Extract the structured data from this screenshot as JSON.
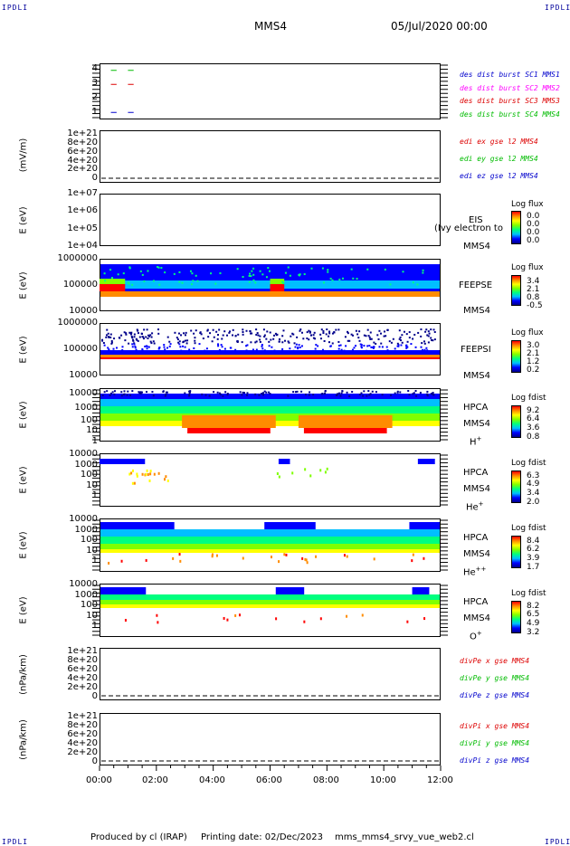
{
  "header": {
    "corner_left": "IPDLI",
    "corner_right": "IPDLI",
    "spacecraft": "MMS4",
    "date_time": "05/Jul/2020 00:00"
  },
  "footer": {
    "corner_left": "IPDLI",
    "corner_right": "IPDLI",
    "produced_by": "Produced by cl (IRAP)",
    "printing_date": "Printing date: 02/Dec/2023",
    "script_name": "mms_mms4_srvy_vue_web2.cl"
  },
  "colors": {
    "blue": "#0000cc",
    "magenta": "#ff00ff",
    "red": "#dd0000",
    "green": "#00bb00",
    "spectrogram_scale": [
      "#00008b",
      "#0000ff",
      "#00bfff",
      "#00ff7f",
      "#7fff00",
      "#ffff00",
      "#ff8c00",
      "#ff0000"
    ]
  },
  "chart_data": [
    {
      "id": "burst",
      "type": "scatter",
      "ylim": [
        0.5,
        4.5
      ],
      "yticks": [
        "4",
        "3",
        "2",
        "1"
      ],
      "legend": [
        {
          "label": "des dist burst SC1 MMS1",
          "color": "#0000cc"
        },
        {
          "label": "des dist burst SC2 MMS2",
          "color": "#ff00ff"
        },
        {
          "label": "des dist burst SC3 MMS3",
          "color": "#dd0000"
        },
        {
          "label": "des dist burst SC4 MMS4",
          "color": "#00bb00"
        }
      ],
      "series": [
        {
          "level": 4,
          "color": "#00bb00",
          "segments": [
            [
              0.4,
              0.6
            ],
            [
              1.0,
              1.2
            ]
          ]
        },
        {
          "level": 3,
          "color": "#dd0000",
          "segments": [
            [
              0.4,
              0.6
            ],
            [
              1.0,
              1.2
            ]
          ]
        },
        {
          "level": 1,
          "color": "#0000cc",
          "segments": [
            [
              0.4,
              0.6
            ],
            [
              1.0,
              1.2
            ]
          ]
        }
      ]
    },
    {
      "id": "edi",
      "type": "line",
      "ylabel": "(mV/m)",
      "yticks": [
        "1e+21",
        "8e+20",
        "6e+20",
        "4e+20",
        "2e+20",
        "0"
      ],
      "legend": [
        {
          "label": "edi ex gse l2 MMS4",
          "color": "#dd0000"
        },
        {
          "label": "edi ey gse l2 MMS4",
          "color": "#00bb00"
        },
        {
          "label": "edi ez gse l2 MMS4",
          "color": "#0000cc"
        }
      ]
    },
    {
      "id": "eis",
      "type": "heatmap",
      "ylabel": "E (eV)",
      "yticks": [
        "1e+07",
        "1e+06",
        "1e+05",
        "1e+04"
      ],
      "side_labels": [
        "EIS",
        "MMS4"
      ],
      "overlay_text": "(Ivy electron to",
      "colorbar": {
        "title": "Log flux",
        "values": [
          "0.0",
          "0.0",
          "0.0",
          "0.0"
        ]
      }
    },
    {
      "id": "feepse",
      "type": "heatmap",
      "ylabel": "E (eV)",
      "yticks": [
        "1000000",
        "100000",
        "10000"
      ],
      "side_labels": [
        "FEEPSE",
        "MMS4"
      ],
      "colorbar": {
        "title": "Log flux",
        "values": [
          "3.4",
          "2.1",
          "0.8",
          "-0.5"
        ]
      }
    },
    {
      "id": "feepsi",
      "type": "heatmap",
      "ylabel": "E (eV)",
      "yticks": [
        "1000000",
        "100000",
        "10000"
      ],
      "side_labels": [
        "FEEPSI",
        "MMS4"
      ],
      "colorbar": {
        "title": "Log flux",
        "values": [
          "3.0",
          "2.1",
          "1.2",
          "0.2"
        ]
      }
    },
    {
      "id": "hpca_h",
      "type": "heatmap",
      "ylabel": "E (eV)",
      "yticks": [
        "10000",
        "1000",
        "100",
        "10",
        "1"
      ],
      "side_labels": [
        "HPCA",
        "MMS4",
        "H+"
      ],
      "colorbar": {
        "title": "Log fdist",
        "values": [
          "9.2",
          "6.4",
          "3.6",
          "0.8"
        ]
      }
    },
    {
      "id": "hpca_he",
      "type": "heatmap",
      "ylabel": "E (eV)",
      "yticks": [
        "10000",
        "1000",
        "100",
        "10",
        "1"
      ],
      "side_labels": [
        "HPCA",
        "MMS4",
        "He+"
      ],
      "colorbar": {
        "title": "Log fdist",
        "values": [
          "6.3",
          "4.9",
          "3.4",
          "2.0"
        ]
      }
    },
    {
      "id": "hpca_hepp",
      "type": "heatmap",
      "ylabel": "E (eV)",
      "yticks": [
        "10000",
        "1000",
        "100",
        "10",
        "1"
      ],
      "side_labels": [
        "HPCA",
        "MMS4",
        "He++"
      ],
      "colorbar": {
        "title": "Log fdist",
        "values": [
          "8.4",
          "6.2",
          "3.9",
          "1.7"
        ]
      }
    },
    {
      "id": "hpca_o",
      "type": "heatmap",
      "ylabel": "E (eV)",
      "yticks": [
        "10000",
        "1000",
        "100",
        "10",
        "1"
      ],
      "side_labels": [
        "HPCA",
        "MMS4",
        "O+"
      ],
      "colorbar": {
        "title": "Log fdist",
        "values": [
          "8.2",
          "6.5",
          "4.9",
          "3.2"
        ]
      }
    },
    {
      "id": "divpe",
      "type": "line",
      "ylabel": "(nPa/km)",
      "yticks": [
        "1e+21",
        "8e+20",
        "6e+20",
        "4e+20",
        "2e+20",
        "0"
      ],
      "legend": [
        {
          "label": "divPe x gse MMS4",
          "color": "#dd0000"
        },
        {
          "label": "divPe y gse MMS4",
          "color": "#00bb00"
        },
        {
          "label": "divPe z gse MMS4",
          "color": "#0000cc"
        }
      ]
    },
    {
      "id": "divpi",
      "type": "line",
      "ylabel": "(nPa/km)",
      "yticks": [
        "1e+21",
        "8e+20",
        "6e+20",
        "4e+20",
        "2e+20",
        "0"
      ],
      "legend": [
        {
          "label": "divPi x gse MMS4",
          "color": "#dd0000"
        },
        {
          "label": "divPi y gse MMS4",
          "color": "#00bb00"
        },
        {
          "label": "divPi z gse MMS4",
          "color": "#0000cc"
        }
      ]
    }
  ],
  "x_axis": {
    "ticks": [
      "00:00",
      "02:00",
      "04:00",
      "06:00",
      "08:00",
      "10:00",
      "12:00"
    ],
    "range_hours": [
      0,
      12
    ]
  }
}
